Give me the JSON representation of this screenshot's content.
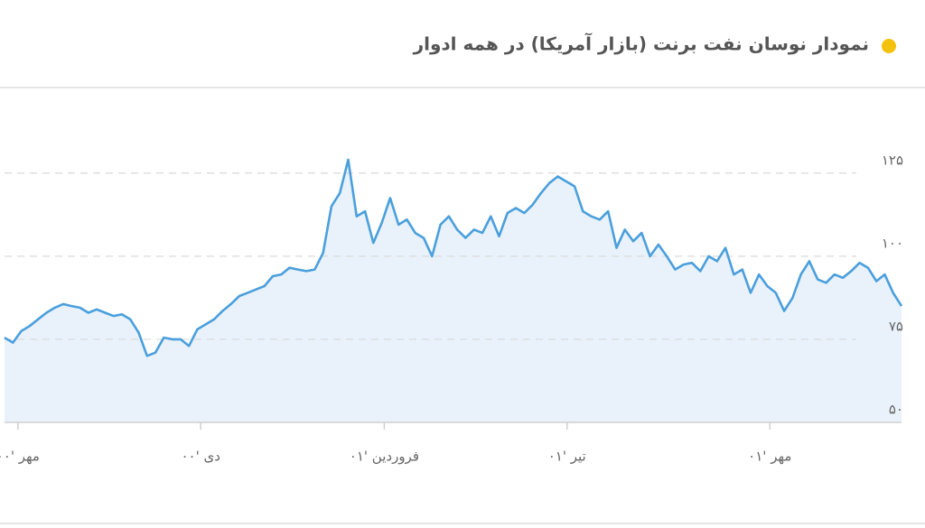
{
  "chart_data": {
    "type": "area",
    "title": "نمودار نوسان نفت برنت (بازار آمریکا) در همه ادوار",
    "values": [
      75.5,
      74,
      77.5,
      79,
      81,
      83,
      84.5,
      85.6,
      85,
      84.5,
      83,
      84,
      83,
      82,
      82.5,
      81,
      77,
      70,
      71,
      75.5,
      75,
      75,
      73,
      78,
      79.5,
      81,
      83.5,
      85.6,
      88,
      89,
      90,
      91,
      94,
      94.5,
      96.5,
      96,
      95.5,
      96,
      101,
      115,
      119,
      129,
      112,
      113.5,
      104,
      110,
      117.5,
      109.5,
      111,
      107,
      105.5,
      100,
      109.5,
      112,
      108,
      105.5,
      108,
      107,
      112,
      106,
      113,
      114.5,
      113,
      115.5,
      119,
      122,
      124,
      122.5,
      121,
      113.5,
      112,
      111,
      113.5,
      102.5,
      108,
      104.5,
      107,
      100,
      103.5,
      100,
      96,
      97.5,
      98,
      95.5,
      100,
      98.5,
      102.5,
      94.5,
      96,
      89,
      94.5,
      91,
      89,
      83.5,
      87.5,
      94.5,
      98.5,
      93,
      92,
      94.5,
      93.5,
      95.5,
      98,
      96.5,
      92.5,
      94.5,
      89,
      85
    ],
    "color": "#4a9fdc",
    "fill_color": "#e9f2fb",
    "xlim": [
      0,
      107
    ],
    "xticks": [
      {
        "value": 1.6,
        "label": "مهر '۰۰"
      },
      {
        "value": 23.4,
        "label": "دی '۰۰"
      },
      {
        "value": 45.3,
        "label": "فروردین '۰۱"
      },
      {
        "value": 67.1,
        "label": "تیر '۰۱"
      },
      {
        "value": 91.3,
        "label": "مهر '۰۱"
      }
    ],
    "ylim": [
      50,
      132
    ],
    "yticks": [
      {
        "value": 50,
        "label": "۵۰"
      },
      {
        "value": 75,
        "label": "۷۵"
      },
      {
        "value": 100,
        "label": "۱۰۰"
      },
      {
        "value": 125,
        "label": "۱۲۵"
      }
    ],
    "grid": true
  }
}
